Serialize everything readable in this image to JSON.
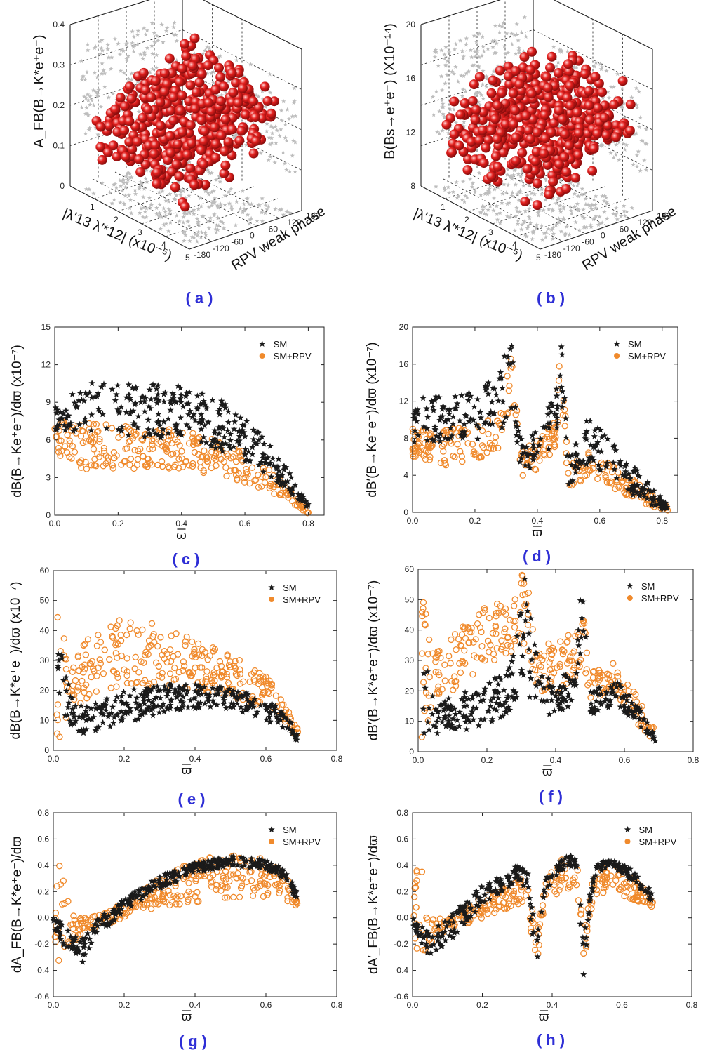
{
  "captions": {
    "a": "(a)",
    "b": "(b)",
    "c": "(c)",
    "d": "(d)",
    "e": "(e)",
    "f": "(f)",
    "g": "(g)",
    "h": "(h)"
  },
  "colors": {
    "sm": "#1a1a1a",
    "rpv": "#f08a2c",
    "sphere": "#e3201e",
    "shadow": "#bdbdbd"
  },
  "chart_data": [
    {
      "id": "a",
      "type": "scatter3d",
      "zlabel": "A_FB(B→K*e⁺e⁻)",
      "xlabel": "|λ′13 λ′*12| (x10⁻⁵)",
      "ylabel": "RPV weak phase",
      "xticks": [
        "1",
        "2",
        "3",
        "4",
        "5"
      ],
      "yticks": [
        "-180",
        "-120",
        "-60",
        "0",
        "60",
        "120",
        "180"
      ],
      "zticks": [
        "0",
        "0.1",
        "0.2",
        "0.3",
        "0.4"
      ],
      "x_range": [
        0,
        5
      ],
      "y_range": [
        -180,
        180
      ],
      "z_range": [
        0,
        0.4
      ]
    },
    {
      "id": "b",
      "type": "scatter3d",
      "zlabel": "B(Bs→e⁺e⁻) (X10⁻¹⁴)",
      "xlabel": "|λ′13 λ′*12| (x10⁻⁵)",
      "ylabel": "RPV weak phase",
      "xticks": [
        "1",
        "2",
        "3",
        "4",
        "5"
      ],
      "yticks": [
        "-180",
        "-120",
        "-60",
        "0",
        "60",
        "120",
        "180"
      ],
      "zticks": [
        "8",
        "12",
        "16",
        "20"
      ],
      "x_range": [
        0,
        5
      ],
      "y_range": [
        -180,
        180
      ],
      "z_range": [
        4,
        20
      ]
    },
    {
      "id": "c",
      "type": "scatter",
      "ylabel": "dB(B→Ke⁺e⁻)/dϖ (x10⁻⁷)",
      "xlabel": "ϖ",
      "xlim": [
        0,
        0.85
      ],
      "ylim": [
        0,
        15
      ],
      "xticks": [
        "0.0",
        "0.2",
        "0.4",
        "0.6",
        "0.8"
      ],
      "yticks": [
        "0",
        "3",
        "6",
        "9",
        "12",
        "15"
      ],
      "legend": [
        "SM",
        "SM+RPV"
      ],
      "legend_position": "top-right",
      "series": [
        {
          "name": "SM",
          "band": [
            [
              0.0,
              6.6,
              8.6
            ],
            [
              0.1,
              6.5,
              10.6
            ],
            [
              0.2,
              6.3,
              10.4
            ],
            [
              0.3,
              6.2,
              10.5
            ],
            [
              0.4,
              6.0,
              10.3
            ],
            [
              0.5,
              5.4,
              9.6
            ],
            [
              0.6,
              4.3,
              7.8
            ],
            [
              0.7,
              2.6,
              5.0
            ],
            [
              0.75,
              1.6,
              3.2
            ],
            [
              0.8,
              0.3,
              0.9
            ]
          ]
        },
        {
          "name": "SM+RPV",
          "band": [
            [
              0.0,
              5.0,
              7.6
            ],
            [
              0.1,
              3.5,
              7.4
            ],
            [
              0.2,
              3.6,
              7.3
            ],
            [
              0.3,
              3.8,
              7.1
            ],
            [
              0.4,
              3.7,
              6.8
            ],
            [
              0.5,
              3.2,
              6.1
            ],
            [
              0.6,
              2.6,
              5.0
            ],
            [
              0.7,
              1.6,
              3.2
            ],
            [
              0.75,
              0.9,
              2.0
            ],
            [
              0.8,
              0.1,
              0.6
            ]
          ]
        }
      ]
    },
    {
      "id": "d",
      "type": "scatter",
      "ylabel": "dB′(B→Ke⁺e⁻)/dϖ (x10⁻⁷)",
      "xlabel": "ϖ",
      "xlim": [
        0,
        0.85
      ],
      "ylim": [
        0,
        20
      ],
      "xticks": [
        "0.0",
        "0.2",
        "0.4",
        "0.6",
        "0.8"
      ],
      "yticks": [
        "0",
        "4",
        "8",
        "12",
        "16",
        "20"
      ],
      "legend": [
        "SM",
        "SM+RPV"
      ],
      "legend_position": "top-right",
      "series": [
        {
          "name": "SM",
          "band": [
            [
              0.0,
              7.4,
              12.5
            ],
            [
              0.1,
              7.5,
              12.5
            ],
            [
              0.2,
              7.8,
              13.0
            ],
            [
              0.28,
              8.5,
              15.5
            ],
            [
              0.315,
              11.5,
              19.5
            ],
            [
              0.35,
              3.5,
              7.5
            ],
            [
              0.4,
              5.0,
              9.5
            ],
            [
              0.46,
              8.0,
              13.0
            ],
            [
              0.475,
              13.0,
              19.5
            ],
            [
              0.5,
              3.0,
              6.0
            ],
            [
              0.57,
              5.0,
              11.0
            ],
            [
              0.65,
              3.0,
              7.0
            ],
            [
              0.75,
              1.0,
              3.5
            ],
            [
              0.82,
              0.0,
              0.8
            ]
          ]
        },
        {
          "name": "SM+RPV",
          "band": [
            [
              0.0,
              6.0,
              9.0
            ],
            [
              0.1,
              5.0,
              9.0
            ],
            [
              0.2,
              5.5,
              9.5
            ],
            [
              0.28,
              7.0,
              10.5
            ],
            [
              0.315,
              11.0,
              19.0
            ],
            [
              0.35,
              3.5,
              6.5
            ],
            [
              0.4,
              4.5,
              8.0
            ],
            [
              0.46,
              7.0,
              10.0
            ],
            [
              0.475,
              12.0,
              18.5
            ],
            [
              0.5,
              2.5,
              5.0
            ],
            [
              0.57,
              4.0,
              7.0
            ],
            [
              0.65,
              2.5,
              5.0
            ],
            [
              0.75,
              0.8,
              2.5
            ],
            [
              0.82,
              0.0,
              0.6
            ]
          ]
        }
      ]
    },
    {
      "id": "e",
      "type": "scatter",
      "ylabel": "dB(B→K*e⁺e⁻)/dϖ (x10⁻⁷)",
      "xlabel": "ϖ",
      "xlim": [
        0,
        0.8
      ],
      "ylim": [
        0,
        60
      ],
      "xticks": [
        "0.0",
        "0.2",
        "0.4",
        "0.6",
        "0.8"
      ],
      "yticks": [
        "0",
        "10",
        "20",
        "30",
        "40",
        "50",
        "60"
      ],
      "legend": [
        "SM",
        "SM+RPV"
      ],
      "legend_position": "top-right",
      "series": [
        {
          "name": "SM",
          "band": [
            [
              0.02,
              14,
              36
            ],
            [
              0.05,
              5,
              18
            ],
            [
              0.1,
              6,
              15
            ],
            [
              0.2,
              9,
              20
            ],
            [
              0.3,
              12,
              22
            ],
            [
              0.4,
              14,
              22
            ],
            [
              0.5,
              14,
              21
            ],
            [
              0.6,
              10,
              17
            ],
            [
              0.65,
              7,
              13
            ],
            [
              0.69,
              3,
              6
            ]
          ]
        },
        {
          "name": "SM+RPV",
          "band": [
            [
              0.01,
              2,
              54
            ],
            [
              0.05,
              12,
              30
            ],
            [
              0.1,
              18,
              38
            ],
            [
              0.2,
              22,
              45
            ],
            [
              0.3,
              20,
              42
            ],
            [
              0.4,
              20,
              37
            ],
            [
              0.5,
              18,
              32
            ],
            [
              0.6,
              14,
              25
            ],
            [
              0.65,
              9,
              18
            ],
            [
              0.69,
              3,
              7
            ]
          ]
        }
      ]
    },
    {
      "id": "f",
      "type": "scatter",
      "ylabel": "dB′(B→K*e⁺e⁻)/dϖ (x10⁻⁷)",
      "xlabel": "ϖ",
      "xlim": [
        0,
        0.8
      ],
      "ylim": [
        0,
        60
      ],
      "xticks": [
        "0.0",
        "0.2",
        "0.4",
        "0.6",
        "0.8"
      ],
      "yticks": [
        "0",
        "10",
        "20",
        "30",
        "40",
        "50",
        "60"
      ],
      "legend": [
        "SM",
        "SM+RPV"
      ],
      "legend_position": "top-right",
      "series": [
        {
          "name": "SM",
          "band": [
            [
              0.01,
              5,
              36
            ],
            [
              0.05,
              6,
              16
            ],
            [
              0.1,
              6,
              18
            ],
            [
              0.2,
              9,
              22
            ],
            [
              0.27,
              13,
              30
            ],
            [
              0.31,
              20,
              58
            ],
            [
              0.35,
              11,
              28
            ],
            [
              0.4,
              13,
              22
            ],
            [
              0.46,
              15,
              30
            ],
            [
              0.475,
              30,
              58
            ],
            [
              0.5,
              12,
              20
            ],
            [
              0.58,
              15,
              23
            ],
            [
              0.63,
              10,
              17
            ],
            [
              0.69,
              3,
              6
            ]
          ]
        },
        {
          "name": "SM+RPV",
          "band": [
            [
              0.01,
              3,
              54
            ],
            [
              0.05,
              15,
              34
            ],
            [
              0.1,
              20,
              40
            ],
            [
              0.2,
              25,
              48
            ],
            [
              0.27,
              30,
              55
            ],
            [
              0.31,
              35,
              60
            ],
            [
              0.35,
              20,
              34
            ],
            [
              0.4,
              18,
              37
            ],
            [
              0.46,
              22,
              40
            ],
            [
              0.475,
              30,
              49
            ],
            [
              0.5,
              17,
              28
            ],
            [
              0.58,
              18,
              30
            ],
            [
              0.63,
              10,
              20
            ],
            [
              0.69,
              3,
              7
            ]
          ]
        }
      ]
    },
    {
      "id": "g",
      "type": "scatter",
      "ylabel": "dA_FB(B→K*e⁺e⁻)/dϖ",
      "xlabel": "ϖ",
      "xlim": [
        0,
        0.8
      ],
      "ylim": [
        -0.6,
        0.8
      ],
      "xticks": [
        "0.0",
        "0.2",
        "0.4",
        "0.6",
        "0.8"
      ],
      "yticks": [
        "-0.6",
        "-0.4",
        "-0.2",
        "0.0",
        "0.2",
        "0.4",
        "0.6",
        "0.8"
      ],
      "legend": [
        "SM",
        "SM+RPV"
      ],
      "legend_position": "top-right",
      "series": [
        {
          "name": "SM",
          "band": [
            [
              0.0,
              -0.08,
              0.02
            ],
            [
              0.05,
              -0.3,
              -0.1
            ],
            [
              0.08,
              -0.35,
              -0.15
            ],
            [
              0.12,
              -0.15,
              -0.02
            ],
            [
              0.2,
              0.05,
              0.15
            ],
            [
              0.3,
              0.22,
              0.32
            ],
            [
              0.4,
              0.34,
              0.42
            ],
            [
              0.5,
              0.4,
              0.47
            ],
            [
              0.6,
              0.36,
              0.44
            ],
            [
              0.65,
              0.3,
              0.38
            ],
            [
              0.69,
              0.12,
              0.2
            ]
          ]
        },
        {
          "name": "SM+RPV",
          "band": [
            [
              0.0,
              -0.12,
              0.1
            ],
            [
              0.02,
              -0.45,
              0.45
            ],
            [
              0.05,
              -0.2,
              0.02
            ],
            [
              0.1,
              -0.1,
              0.0
            ],
            [
              0.2,
              0.0,
              0.12
            ],
            [
              0.3,
              0.08,
              0.3
            ],
            [
              0.4,
              0.12,
              0.45
            ],
            [
              0.5,
              0.15,
              0.48
            ],
            [
              0.6,
              0.15,
              0.45
            ],
            [
              0.65,
              0.14,
              0.35
            ],
            [
              0.69,
              0.08,
              0.15
            ]
          ]
        }
      ]
    },
    {
      "id": "h",
      "type": "scatter",
      "ylabel": "dA′_FB(B→K*e⁺e⁻)/dϖ",
      "xlabel": "ϖ",
      "xlim": [
        0,
        0.8
      ],
      "ylim": [
        -0.6,
        0.8
      ],
      "xticks": [
        "0.0",
        "0.2",
        "0.4",
        "0.6",
        "0.8"
      ],
      "yticks": [
        "-0.6",
        "-0.4",
        "-0.2",
        "0.0",
        "0.2",
        "0.4",
        "0.6",
        "0.8"
      ],
      "legend": [
        "SM",
        "SM+RPV"
      ],
      "legend_position": "top-right",
      "series": [
        {
          "name": "SM",
          "band": [
            [
              0.0,
              -0.08,
              0.02
            ],
            [
              0.05,
              -0.3,
              -0.1
            ],
            [
              0.1,
              -0.2,
              0.0
            ],
            [
              0.2,
              0.1,
              0.25
            ],
            [
              0.3,
              0.28,
              0.4
            ],
            [
              0.33,
              0.2,
              0.35
            ],
            [
              0.355,
              -0.48,
              -0.1
            ],
            [
              0.38,
              0.2,
              0.3
            ],
            [
              0.44,
              0.4,
              0.48
            ],
            [
              0.47,
              0.38,
              0.46
            ],
            [
              0.49,
              -0.45,
              -0.1
            ],
            [
              0.52,
              0.3,
              0.4
            ],
            [
              0.56,
              0.4,
              0.45
            ],
            [
              0.62,
              0.3,
              0.38
            ],
            [
              0.69,
              0.1,
              0.2
            ]
          ]
        },
        {
          "name": "SM+RPV",
          "band": [
            [
              0.0,
              -0.12,
              0.1
            ],
            [
              0.02,
              -0.45,
              0.6
            ],
            [
              0.05,
              -0.2,
              0.02
            ],
            [
              0.1,
              -0.1,
              0.0
            ],
            [
              0.2,
              0.0,
              0.15
            ],
            [
              0.3,
              0.1,
              0.3
            ],
            [
              0.33,
              0.12,
              0.3
            ],
            [
              0.355,
              -0.45,
              -0.1
            ],
            [
              0.38,
              0.15,
              0.3
            ],
            [
              0.44,
              0.2,
              0.48
            ],
            [
              0.47,
              0.2,
              0.45
            ],
            [
              0.49,
              -0.4,
              -0.1
            ],
            [
              0.52,
              0.15,
              0.35
            ],
            [
              0.56,
              0.2,
              0.42
            ],
            [
              0.62,
              0.15,
              0.35
            ],
            [
              0.69,
              0.08,
              0.15
            ]
          ]
        }
      ]
    }
  ]
}
